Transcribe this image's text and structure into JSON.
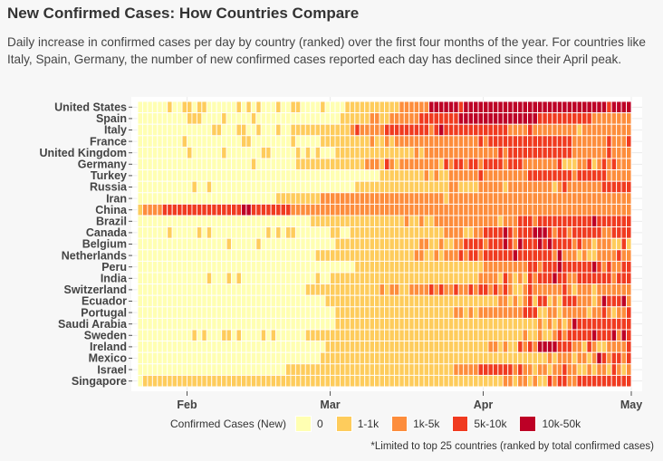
{
  "header": {
    "title": "New Confirmed Cases: How Countries Compare",
    "subtitle": "Daily increase in confirmed cases per day by country (ranked) over the first four months of the year. For countries like Italy, Spain, Germany, the number of new confirmed cases reported each day has declined since their April peak."
  },
  "legend": {
    "title": "Confirmed Cases (New)",
    "items": [
      {
        "label": "0",
        "color": "#ffffb2"
      },
      {
        "label": "1-1k",
        "color": "#fecc5c"
      },
      {
        "label": "1k-5k",
        "color": "#fd8d3c"
      },
      {
        "label": "5k-10k",
        "color": "#f03b20"
      },
      {
        "label": "10k-50k",
        "color": "#bd0026"
      }
    ]
  },
  "footnote": "*Limited to top 25 countries (ranked by total confirmed cases)",
  "chart_data": {
    "type": "heatmap",
    "x_range": [
      "2020-01-22",
      "2020-04-30"
    ],
    "x_ticks": [
      {
        "label": "Feb",
        "date": "2020-02-01"
      },
      {
        "label": "Mar",
        "date": "2020-03-01"
      },
      {
        "label": "Apr",
        "date": "2020-04-01"
      },
      {
        "label": "May",
        "date": "2020-05-01"
      }
    ],
    "level_colors": [
      "#ffffb2",
      "#fecc5c",
      "#fd8d3c",
      "#f03b20",
      "#bd0026"
    ],
    "rows": [
      {
        "country": "United States",
        "first_case": "2020-01-24",
        "onset": "2020-03-04",
        "l2": "2020-03-15",
        "l4": "2020-03-21",
        "sparse": 0.1
      },
      {
        "country": "Spain",
        "first_case": "2020-02-01",
        "onset": "2020-03-03",
        "l2": "2020-03-14",
        "l3": "2020-03-19",
        "l4": "2020-03-27",
        "l4_end": "2020-04-11",
        "l3_end": "2020-04-22",
        "sparse": 0.12
      },
      {
        "country": "Italy",
        "first_case": "2020-01-31",
        "onset": "2020-02-22",
        "l2": "2020-03-05",
        "l3": "2020-03-13",
        "l3_end": "2020-04-05",
        "sparse": 0.1
      },
      {
        "country": "France",
        "first_case": "2020-01-24",
        "onset": "2020-02-28",
        "l2": "2020-03-14",
        "l3": "2020-03-31",
        "l3_end": "2020-04-18",
        "sparse": 0.2
      },
      {
        "country": "United Kingdom",
        "first_case": "2020-01-31",
        "onset": "2020-03-02",
        "l2": "2020-03-22",
        "l3": "2020-04-04",
        "l3_end": "2020-04-18",
        "sparse": 0.08
      },
      {
        "country": "Germany",
        "first_case": "2020-01-27",
        "onset": "2020-02-25",
        "l2": "2020-03-12",
        "l3": "2020-03-24",
        "l3_end": "2020-04-09",
        "sparse": 0.25
      },
      {
        "country": "Turkey",
        "first_case": "2020-03-11",
        "onset": "2020-03-11",
        "l2": "2020-03-26",
        "l3": "2020-04-10",
        "l3_end": "2020-04-25",
        "sparse": 0.05
      },
      {
        "country": "Russia",
        "first_case": "2020-01-31",
        "onset": "2020-03-06",
        "l2": "2020-03-31",
        "l3": "2020-04-25",
        "sparse": 0.05
      },
      {
        "country": "Iran",
        "first_case": "2020-02-19",
        "onset": "2020-02-19",
        "l2": "2020-03-04",
        "l3_end": "2020-04-08",
        "sparse": 0.15
      },
      {
        "country": "China",
        "first_case": "2020-01-22",
        "onset": "2020-01-22",
        "l2": "2020-01-24",
        "l3": "2020-01-27",
        "l4": "2020-02-12",
        "l4_end": "2020-02-13",
        "l3_end": "2020-02-21",
        "l2_end": "2020-04-30",
        "sparse": 0.02
      },
      {
        "country": "Brazil",
        "first_case": "2020-02-26",
        "onset": "2020-02-26",
        "l2": "2020-03-21",
        "l3": "2020-04-08",
        "sparse": 0.1
      },
      {
        "country": "Canada",
        "first_case": "2020-01-26",
        "onset": "2020-03-05",
        "l2": "2020-03-29",
        "l3": "2020-04-01",
        "sparse": 0.3
      },
      {
        "country": "Belgium",
        "first_case": "2020-02-04",
        "onset": "2020-03-02",
        "l2": "2020-03-25",
        "l3": "2020-03-28",
        "l3_end": "2020-04-20",
        "sparse": 0.4
      },
      {
        "country": "Netherlands",
        "first_case": "2020-02-27",
        "onset": "2020-02-27",
        "l2": "2020-03-24",
        "l3": "2020-03-26",
        "l3_end": "2020-04-16",
        "sparse": 0.4
      },
      {
        "country": "Peru",
        "first_case": "2020-03-06",
        "onset": "2020-03-06",
        "l2": "2020-04-05",
        "l3": "2020-04-10",
        "sparse": 0.4
      },
      {
        "country": "India",
        "first_case": "2020-01-30",
        "onset": "2020-03-02",
        "l2": "2020-04-05",
        "l3": "2020-04-10",
        "sparse": 0.35
      },
      {
        "country": "Switzerland",
        "first_case": "2020-02-25",
        "onset": "2020-02-25",
        "l2": "2020-03-17",
        "l3": "2020-03-20",
        "l3_end": "2020-04-05",
        "sparse": 0.4
      },
      {
        "country": "Ecuador",
        "first_case": "2020-02-29",
        "onset": "2020-02-29",
        "l2": "2020-04-10",
        "l3": "2020-04-24",
        "sparse": 0.7
      },
      {
        "country": "Portugal",
        "first_case": "2020-03-02",
        "onset": "2020-03-02",
        "l2": "2020-03-31",
        "l3": "2020-04-09",
        "l3_end": "2020-04-11",
        "sparse": 0.3
      },
      {
        "country": "Saudi Arabia",
        "first_case": "2020-03-02",
        "onset": "2020-03-02",
        "l2": "2020-04-15",
        "l3": "2020-04-19",
        "sparse": 0.2
      },
      {
        "country": "Sweden",
        "first_case": "2020-02-01",
        "onset": "2020-02-26",
        "l2": "2020-04-15",
        "l3": "2020-04-18",
        "sparse": 0.4
      },
      {
        "country": "Ireland",
        "first_case": "2020-02-29",
        "onset": "2020-02-29",
        "l2": "2020-04-08",
        "l3": "2020-04-10",
        "l3_end": "2020-04-20",
        "sparse": 0.6
      },
      {
        "country": "Mexico",
        "first_case": "2020-02-28",
        "onset": "2020-02-28",
        "l2": "2020-04-20",
        "l3": "2020-04-24",
        "sparse": 0.4
      },
      {
        "country": "Israel",
        "first_case": "2020-02-21",
        "onset": "2020-02-21",
        "l2": "2020-03-28",
        "l3": "2020-03-31",
        "l3_end": "2020-04-08",
        "sparse": 0.4
      },
      {
        "country": "Singapore",
        "first_case": "2020-01-23",
        "onset": "2020-01-23",
        "l2": "2020-04-10",
        "l3": "2020-04-20",
        "sparse": 0.35
      }
    ]
  }
}
